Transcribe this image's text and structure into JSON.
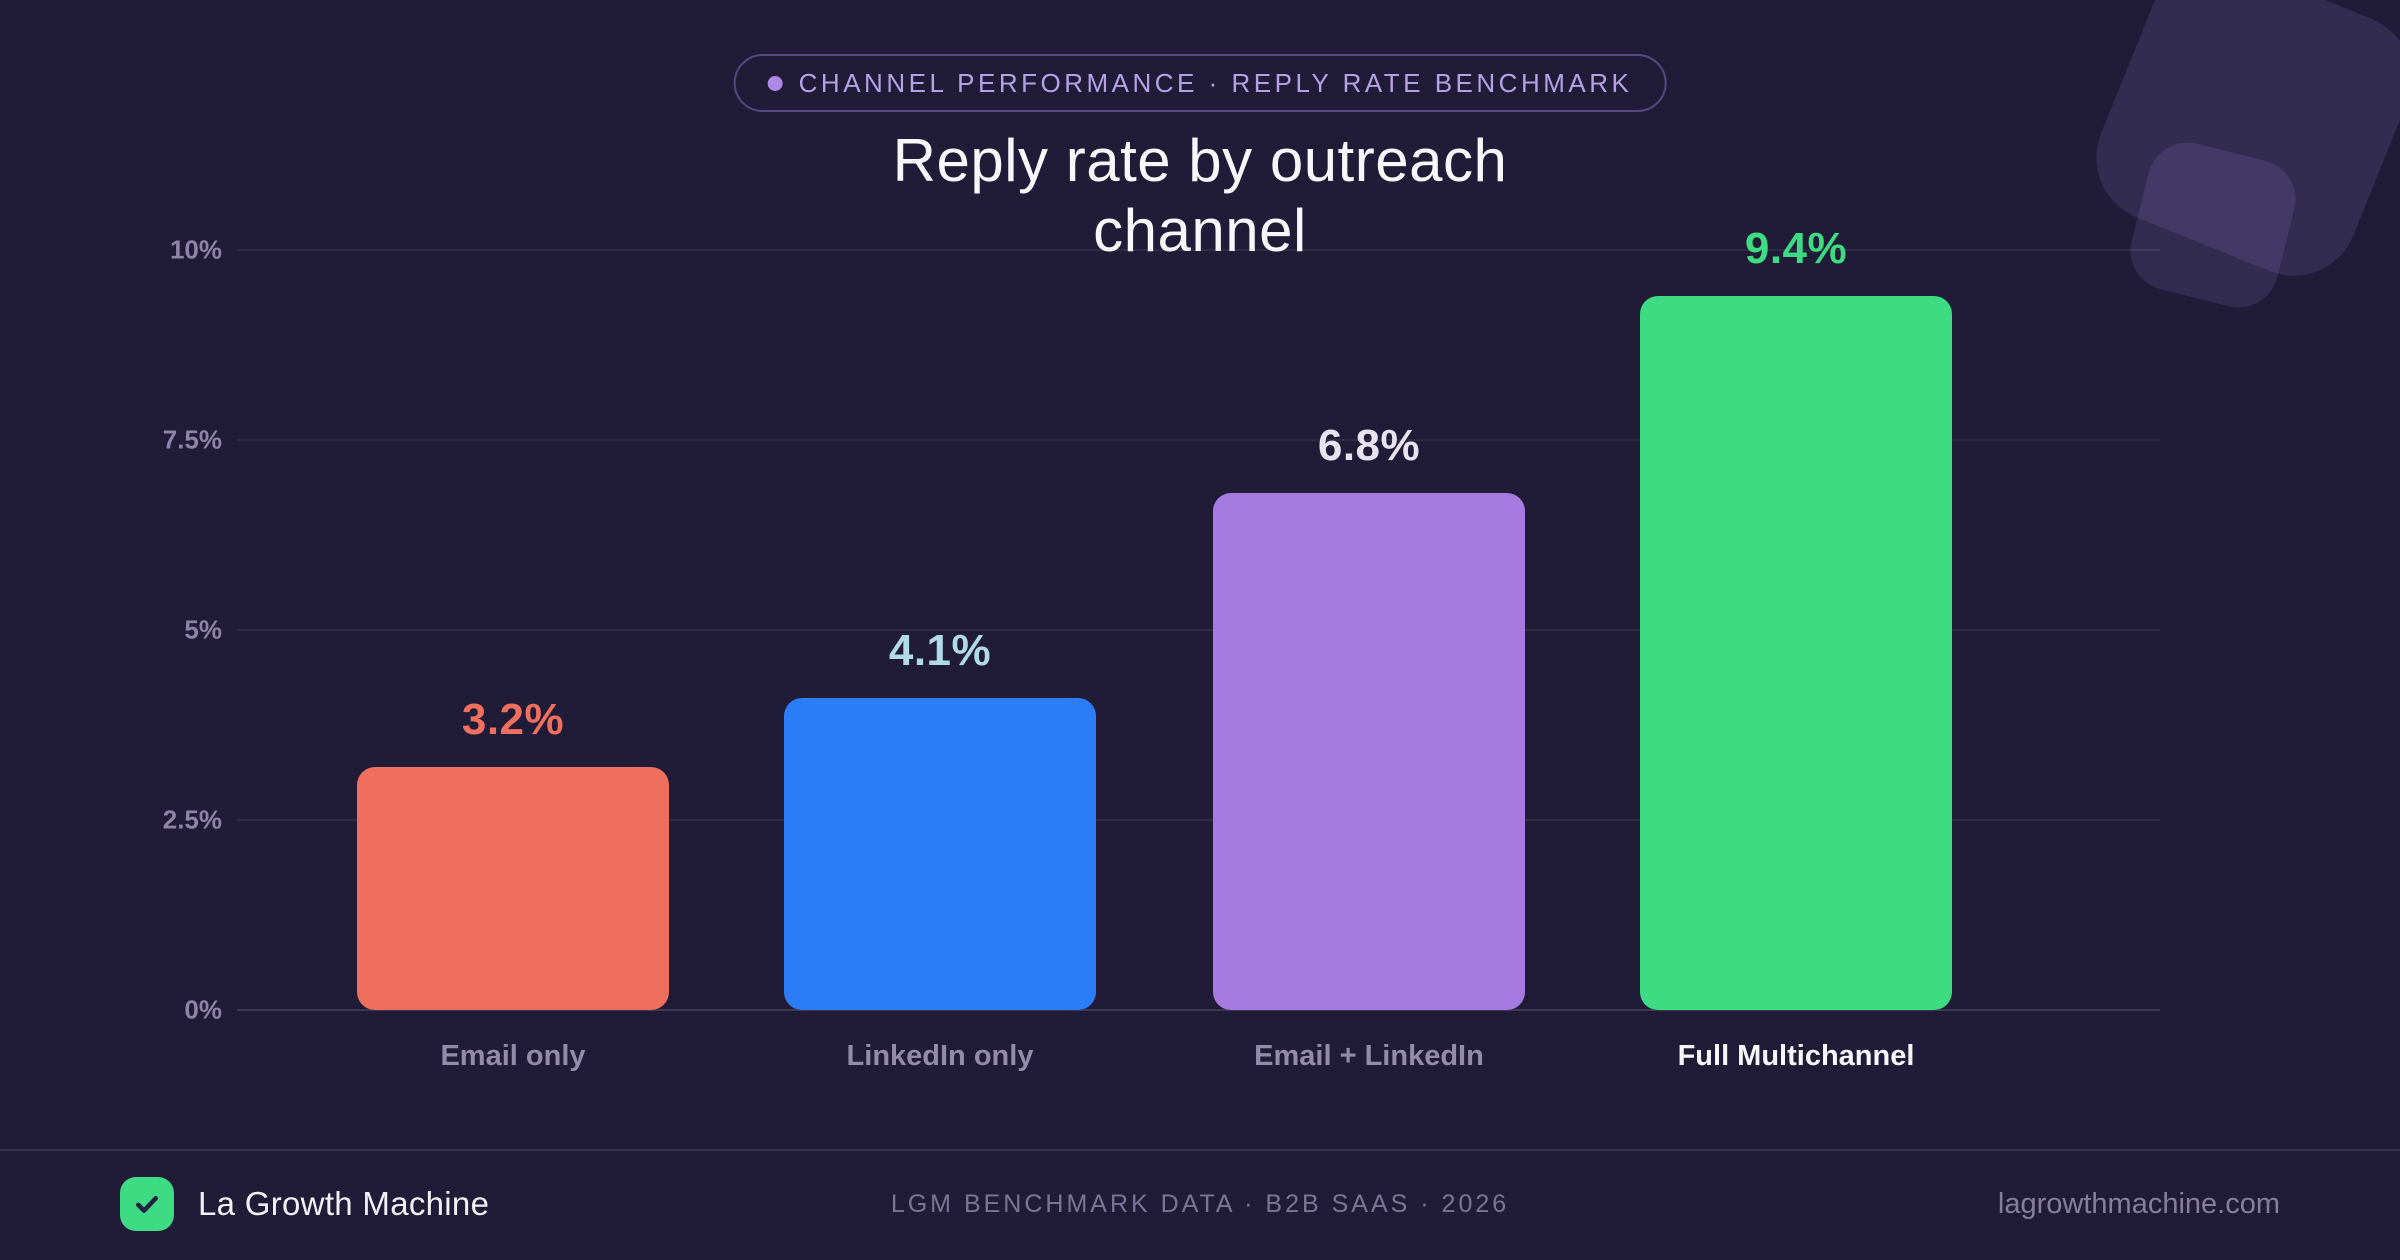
{
  "badge": {
    "label": "CHANNEL PERFORMANCE · REPLY RATE BENCHMARK"
  },
  "title": "Reply rate by outreach channel",
  "chart_data": {
    "type": "bar",
    "title": "Reply rate by outreach channel",
    "categories": [
      "Email only",
      "LinkedIn only",
      "Email + LinkedIn",
      "Full Multichannel"
    ],
    "values": [
      3.2,
      4.1,
      6.8,
      9.4
    ],
    "value_labels": [
      "3.2%",
      "4.1%",
      "6.8%",
      "9.4%"
    ],
    "bar_colors": [
      "#ee6f5d",
      "#2d7cf7",
      "#a67ae1",
      "#3edc82"
    ],
    "value_label_colors": [
      "#ee6f5d",
      "#b0d9e9",
      "#e7e3f0",
      "#3edc82"
    ],
    "category_label_colors": [
      "#938bab",
      "#938bab",
      "#938bab",
      "#f7f7f9"
    ],
    "highlighted_category": "Full Multichannel",
    "xlabel": "",
    "ylabel": "",
    "ylim": [
      0,
      10
    ],
    "yticks": [
      "0%",
      "2.5%",
      "5%",
      "7.5%",
      "10%"
    ],
    "grid": true,
    "legend": false
  },
  "footer": {
    "brand": "La Growth Machine",
    "source": "LGM BENCHMARK DATA · B2B SAAS · 2026",
    "website": "lagrowthmachine.com"
  },
  "colors": {
    "background": "#201c38",
    "badge_dot": "#b088e8",
    "badge_border": "rgba(168,140,245,0.40)",
    "badge_text": "#b3a3e6",
    "brand_green": "#3edc82",
    "logo_check": "#232140",
    "grid_line": "rgba(255,255,255,0.07)",
    "axis_line": "rgba(255,255,255,0.13)",
    "decoration": "rgba(148,122,210,0.17)"
  }
}
